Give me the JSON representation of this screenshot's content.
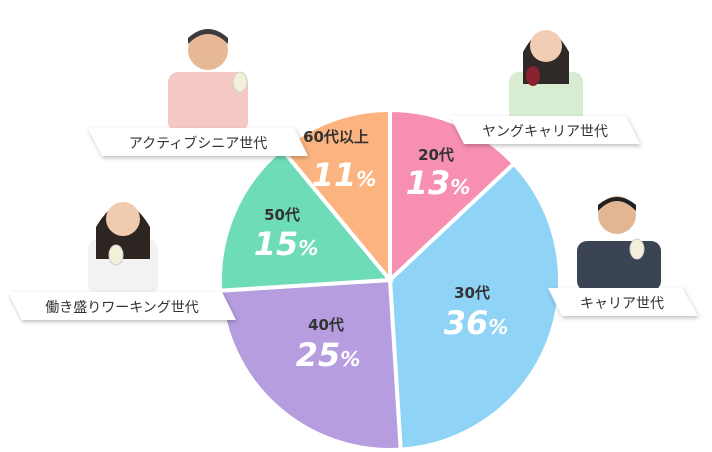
{
  "chart_data": {
    "type": "pie",
    "slices": [
      {
        "category": "20代",
        "value": 13,
        "percent_label": "13%",
        "color": "#f78fb0"
      },
      {
        "category": "30代",
        "value": 36,
        "percent_label": "36%",
        "color": "#8fd3f7"
      },
      {
        "category": "40代",
        "value": 25,
        "percent_label": "25%",
        "color": "#b59de0"
      },
      {
        "category": "50代",
        "value": 15,
        "percent_label": "15%",
        "color": "#6fdcb9"
      },
      {
        "category": "60代以上",
        "value": 11,
        "percent_label": "11%",
        "color": "#fbb47f"
      }
    ],
    "generation_labels": [
      {
        "text": "ヤングキャリア世代",
        "for": "20代"
      },
      {
        "text": "キャリア世代",
        "for": "30代"
      },
      {
        "text": "働き盛りワーキング世代",
        "for": "40代"
      },
      {
        "text": "アクティブシニア世代",
        "for": "60代以上"
      }
    ]
  }
}
